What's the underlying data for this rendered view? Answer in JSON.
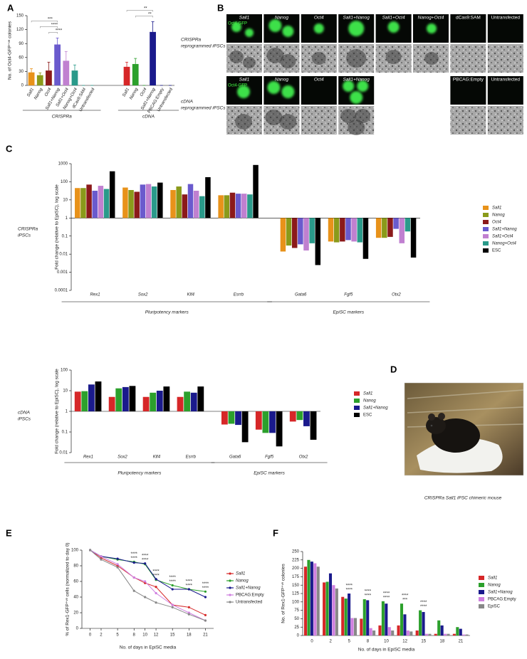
{
  "panels": [
    "A",
    "B",
    "C",
    "D",
    "E",
    "F"
  ],
  "panel_b": {
    "stain": "Oct4-GFP",
    "rows": [
      {
        "label": [
          "CRISPRa",
          "reprogrammed iPSCs"
        ],
        "columns": [
          "Sall1",
          "Nanog",
          "Oct4",
          "Sall1+Nanog",
          "Sall1+Oct4",
          "Nanog+Oct4",
          "dCas9:SAM",
          "Untransfected"
        ]
      },
      {
        "label": [
          "cDNA",
          "reprogrammed iPSCs"
        ],
        "columns": [
          "Sall1",
          "Nanog",
          "Oct4",
          "Sall1+Nanog"
        ],
        "controls": [
          "PBCAG:Empty",
          "Untransfected"
        ]
      }
    ]
  },
  "panel_d": {
    "caption": "CRISPRa Sall1 iPSC chimeric mouse"
  },
  "chart_data": [
    {
      "type": "bar",
      "y_label": "No. of Oct4-GFP⁺ᵛᵉ colonies",
      "ylim": [
        0,
        150
      ],
      "yticks": [
        0,
        30,
        60,
        90,
        120,
        150
      ],
      "groups": [
        {
          "label": "CRISPRa",
          "categories": [
            "Sall1",
            "Nanog",
            "Oct4",
            "Sall1+Nanog",
            "Sall1+Oct4",
            "Nanog+Oct4",
            "dCas9:SAM",
            "Untransfected"
          ],
          "values": [
            28,
            22,
            32,
            88,
            53,
            32,
            0,
            0
          ],
          "errors": [
            8,
            5,
            18,
            14,
            20,
            12,
            0,
            0
          ],
          "colors": [
            "#e8921a",
            "#8a9a1a",
            "#8b1a1a",
            "#6a5acd",
            "#c080d0",
            "#2a9a8a",
            "#2a9a8a",
            "#2a9a8a"
          ],
          "brackets": [
            {
              "between": [
                "Sall1",
                "Sall1+Nanog"
              ],
              "label": "***"
            },
            {
              "between": [
                "Nanog",
                "Sall1+Nanog"
              ],
              "label": "****"
            },
            {
              "between": [
                "Oct4",
                "Sall1+Nanog"
              ],
              "label": "****"
            }
          ]
        },
        {
          "label": "cDNA",
          "categories": [
            "Sall1",
            "Nanog",
            "Oct4",
            "Sall1+Nanog",
            "PBCAG:Empty",
            "Untransfected"
          ],
          "values": [
            40,
            46,
            0,
            115,
            0,
            0
          ],
          "errors": [
            10,
            12,
            0,
            22,
            0,
            0
          ],
          "colors": [
            "#d62728",
            "#2ca02c",
            "#2ca02c",
            "#1a1a8c",
            "#1a1a8c",
            "#1a1a8c"
          ],
          "brackets": [
            {
              "between": [
                "Sall1",
                "Sall1+Nanog"
              ],
              "label": "**"
            },
            {
              "between": [
                "Nanog",
                "Sall1+Nanog"
              ],
              "label": "**"
            }
          ]
        }
      ]
    },
    {
      "type": "bar",
      "y_label": "Fold change (relative to EpiSC), log scale",
      "row_label": [
        "CRISPRa",
        "iPSCs"
      ],
      "log_scale": true,
      "ylim": [
        0.0001,
        1000
      ],
      "yticks": [
        0.0001,
        0.001,
        0.01,
        0.1,
        1,
        10,
        100,
        1000
      ],
      "groups": [
        {
          "label": "Pluripotency markers",
          "categories": [
            "Rex1",
            "Sox2",
            "Klf4",
            "Esrrb"
          ]
        },
        {
          "label": "EpiSC markers",
          "categories": [
            "Gata6",
            "Fgf5",
            "Otx2"
          ]
        }
      ],
      "series": [
        {
          "name": "Sall1",
          "color": "#e8921a",
          "values": [
            45,
            48,
            35,
            18,
            0.014,
            0.05,
            0.08
          ]
        },
        {
          "name": "Nanog",
          "color": "#8a9a1a",
          "values": [
            45,
            35,
            55,
            18,
            0.03,
            0.045,
            0.08
          ]
        },
        {
          "name": "Oct4",
          "color": "#8b1a1a",
          "values": [
            70,
            28,
            20,
            25,
            0.022,
            0.05,
            0.09
          ]
        },
        {
          "name": "Sall1+Nanog",
          "color": "#6a5acd",
          "values": [
            32,
            70,
            75,
            22,
            0.035,
            0.06,
            0.25
          ]
        },
        {
          "name": "Sall1+Oct4",
          "color": "#c080d0",
          "values": [
            60,
            75,
            32,
            22,
            0.016,
            0.05,
            0.04
          ]
        },
        {
          "name": "Nanog+Oct4",
          "color": "#2a9a8a",
          "values": [
            40,
            55,
            16,
            20,
            0.04,
            0.045,
            0.18
          ]
        },
        {
          "name": "ESC",
          "color": "#000000",
          "values": [
            380,
            90,
            180,
            850,
            0.0025,
            0.0055,
            0.0065
          ]
        }
      ]
    },
    {
      "type": "bar",
      "y_label": "Fold change (relative to EpiSC), log scale",
      "row_label": [
        "cDNA",
        "iPSCs"
      ],
      "log_scale": true,
      "ylim": [
        0.01,
        100
      ],
      "yticks": [
        0.01,
        0.1,
        1,
        10,
        100
      ],
      "groups": [
        {
          "label": "Pluripotency markers",
          "categories": [
            "Rex1",
            "Sox2",
            "Klf4",
            "Esrrb"
          ]
        },
        {
          "label": "EpiSC markers",
          "categories": [
            "Gata6",
            "Fgf5",
            "Otx2"
          ]
        }
      ],
      "series": [
        {
          "name": "Sall1",
          "color": "#d62728",
          "values": [
            9,
            5,
            5,
            5,
            0.23,
            0.13,
            0.32
          ]
        },
        {
          "name": "Nanog",
          "color": "#2ca02c",
          "values": [
            9.5,
            13,
            8,
            9,
            0.25,
            0.09,
            0.38
          ]
        },
        {
          "name": "Sall1+Nanog",
          "color": "#1a1a8c",
          "values": [
            20,
            15,
            10,
            8,
            0.22,
            0.09,
            0.19
          ]
        },
        {
          "name": "ESC",
          "color": "#000000",
          "values": [
            28,
            17,
            16,
            16,
            0.032,
            0.02,
            0.042
          ]
        }
      ]
    },
    {
      "type": "line",
      "y_label": "% of Rex1-GFP⁺ᵛᵉ cells (normalized to day 0)",
      "x_label": "No. of days in EpiSC media",
      "x": [
        0,
        2,
        5,
        8,
        10,
        12,
        15,
        18,
        21
      ],
      "xlim": [
        -1.5,
        22.5
      ],
      "xticks": [
        0,
        2,
        5,
        8,
        10,
        12,
        15,
        18,
        21
      ],
      "ylim": [
        0,
        100
      ],
      "yticks": [
        0,
        20,
        40,
        60,
        80,
        100
      ],
      "series": [
        {
          "name": "Sall1",
          "color": "#d62728",
          "values": [
            100,
            90,
            80,
            65,
            58,
            53,
            30,
            27,
            17
          ]
        },
        {
          "name": "Nanog",
          "color": "#2ca02c",
          "values": [
            100,
            92,
            88,
            85,
            82,
            62,
            55,
            50,
            47
          ]
        },
        {
          "name": "Sall1+Nanog",
          "color": "#1a1a8c",
          "values": [
            100,
            92,
            89,
            84,
            83,
            63,
            50,
            50,
            40
          ]
        },
        {
          "name": "PBCAG:Empty",
          "color": "#d080e0",
          "values": [
            100,
            92,
            82,
            65,
            60,
            45,
            30,
            20,
            10
          ]
        },
        {
          "name": "Untransfected",
          "color": "#888888",
          "values": [
            100,
            88,
            78,
            48,
            40,
            33,
            27,
            18,
            10
          ]
        }
      ],
      "annotations": [
        {
          "x": 8,
          "lines": [
            "****",
            "****"
          ]
        },
        {
          "x": 10,
          "lines": [
            "****",
            "****"
          ]
        },
        {
          "x": 12,
          "lines": [
            "****",
            "****"
          ]
        },
        {
          "x": 15,
          "lines": [
            "****",
            "****"
          ]
        },
        {
          "x": 18,
          "lines": [
            "****",
            "****"
          ]
        },
        {
          "x": 21,
          "lines": [
            "****",
            "****"
          ]
        }
      ]
    },
    {
      "type": "bar",
      "y_label": "No. of Rex1-GFP⁺ᵛᵉ colonies",
      "x_label": "No. of days in EpiSC media",
      "categories": [
        0,
        2,
        5,
        8,
        10,
        12,
        15,
        18,
        21
      ],
      "ylim": [
        0,
        250
      ],
      "yticks": [
        0,
        25,
        50,
        75,
        100,
        125,
        150,
        175,
        200,
        225,
        250
      ],
      "series": [
        {
          "name": "Sall1",
          "color": "#d62728",
          "values": [
            205,
            158,
            115,
            50,
            30,
            30,
            15,
            5,
            5
          ]
        },
        {
          "name": "Nanog",
          "color": "#2ca02c",
          "values": [
            225,
            160,
            110,
            108,
            102,
            95,
            75,
            45,
            25
          ]
        },
        {
          "name": "Sall1+Nanog",
          "color": "#1a1a8c",
          "values": [
            220,
            185,
            125,
            105,
            95,
            63,
            70,
            30,
            20
          ]
        },
        {
          "name": "PBCAG:Empty",
          "color": "#d080e0",
          "values": [
            215,
            150,
            52,
            22,
            25,
            15,
            5,
            5,
            3
          ]
        },
        {
          "name": "EpiSC",
          "color": "#888888",
          "values": [
            205,
            140,
            52,
            15,
            15,
            12,
            5,
            5,
            3
          ]
        }
      ],
      "annotations": [
        {
          "x": 5,
          "lines": [
            "****",
            "****"
          ]
        },
        {
          "x": 8,
          "lines": [
            "****",
            "****"
          ]
        },
        {
          "x": 10,
          "lines": [
            "****",
            "****"
          ]
        },
        {
          "x": 12,
          "lines": [
            "****",
            "***"
          ]
        },
        {
          "x": 15,
          "lines": [
            "****",
            "****"
          ]
        }
      ]
    }
  ]
}
